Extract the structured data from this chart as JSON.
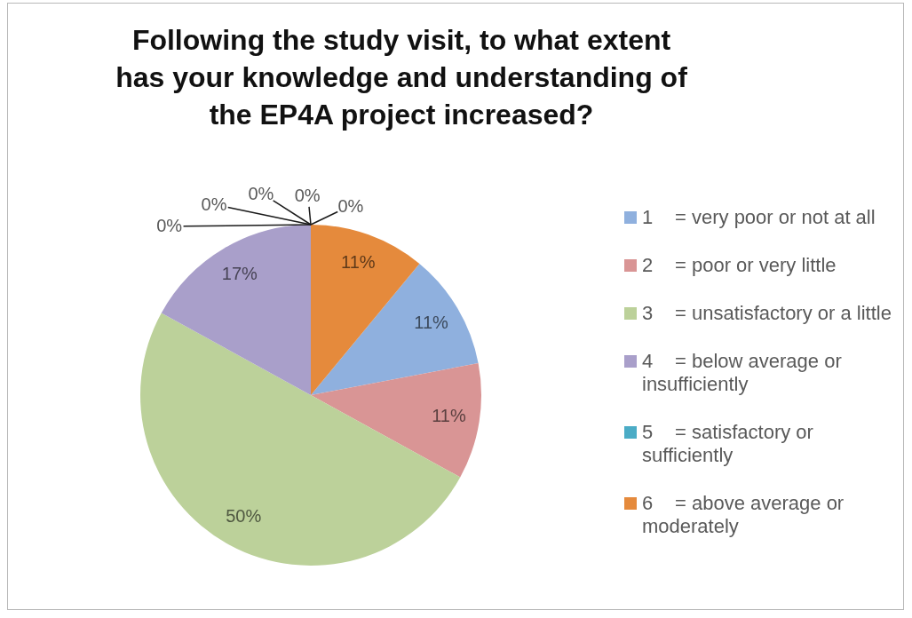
{
  "chart_data": {
    "type": "pie",
    "title": "Following the study visit, to what extent has your knowledge and understanding of the EP4A project increased?",
    "categories": [
      "1 = very poor or not at all",
      "2 = poor or very little",
      "3 = unsatisfactory or a little",
      "4 = below average or insufficiently",
      "5 = satisfactory or sufficiently",
      null,
      null,
      null,
      null,
      "6 = above average or moderately"
    ],
    "values": [
      11,
      11,
      50,
      17,
      0,
      0,
      0,
      0,
      0,
      11
    ],
    "colors": [
      "#8fb0de",
      "#d99595",
      "#bcd19a",
      "#a99fca",
      "#4bacc6",
      "#2c4d75",
      "#772c2a",
      "#5f7530",
      "#4d3b62",
      "#e58a3c"
    ],
    "value_labels": [
      "11%",
      "11%",
      "50%",
      "17%",
      "0%",
      "0%",
      "0%",
      "0%",
      "0%",
      "11%"
    ],
    "legend": "right"
  }
}
